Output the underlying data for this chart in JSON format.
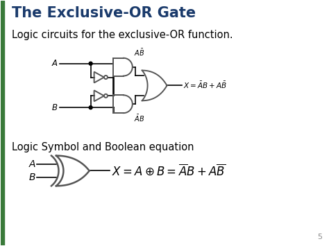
{
  "title": "The Exclusive-OR Gate",
  "title_color": "#1a3a6b",
  "subtitle": "Logic circuits for the exclusive-OR function.",
  "subtitle2": "Logic Symbol and Boolean equation",
  "bg_color": "#ffffff",
  "lw": 1.2,
  "lw_gate": 1.4
}
